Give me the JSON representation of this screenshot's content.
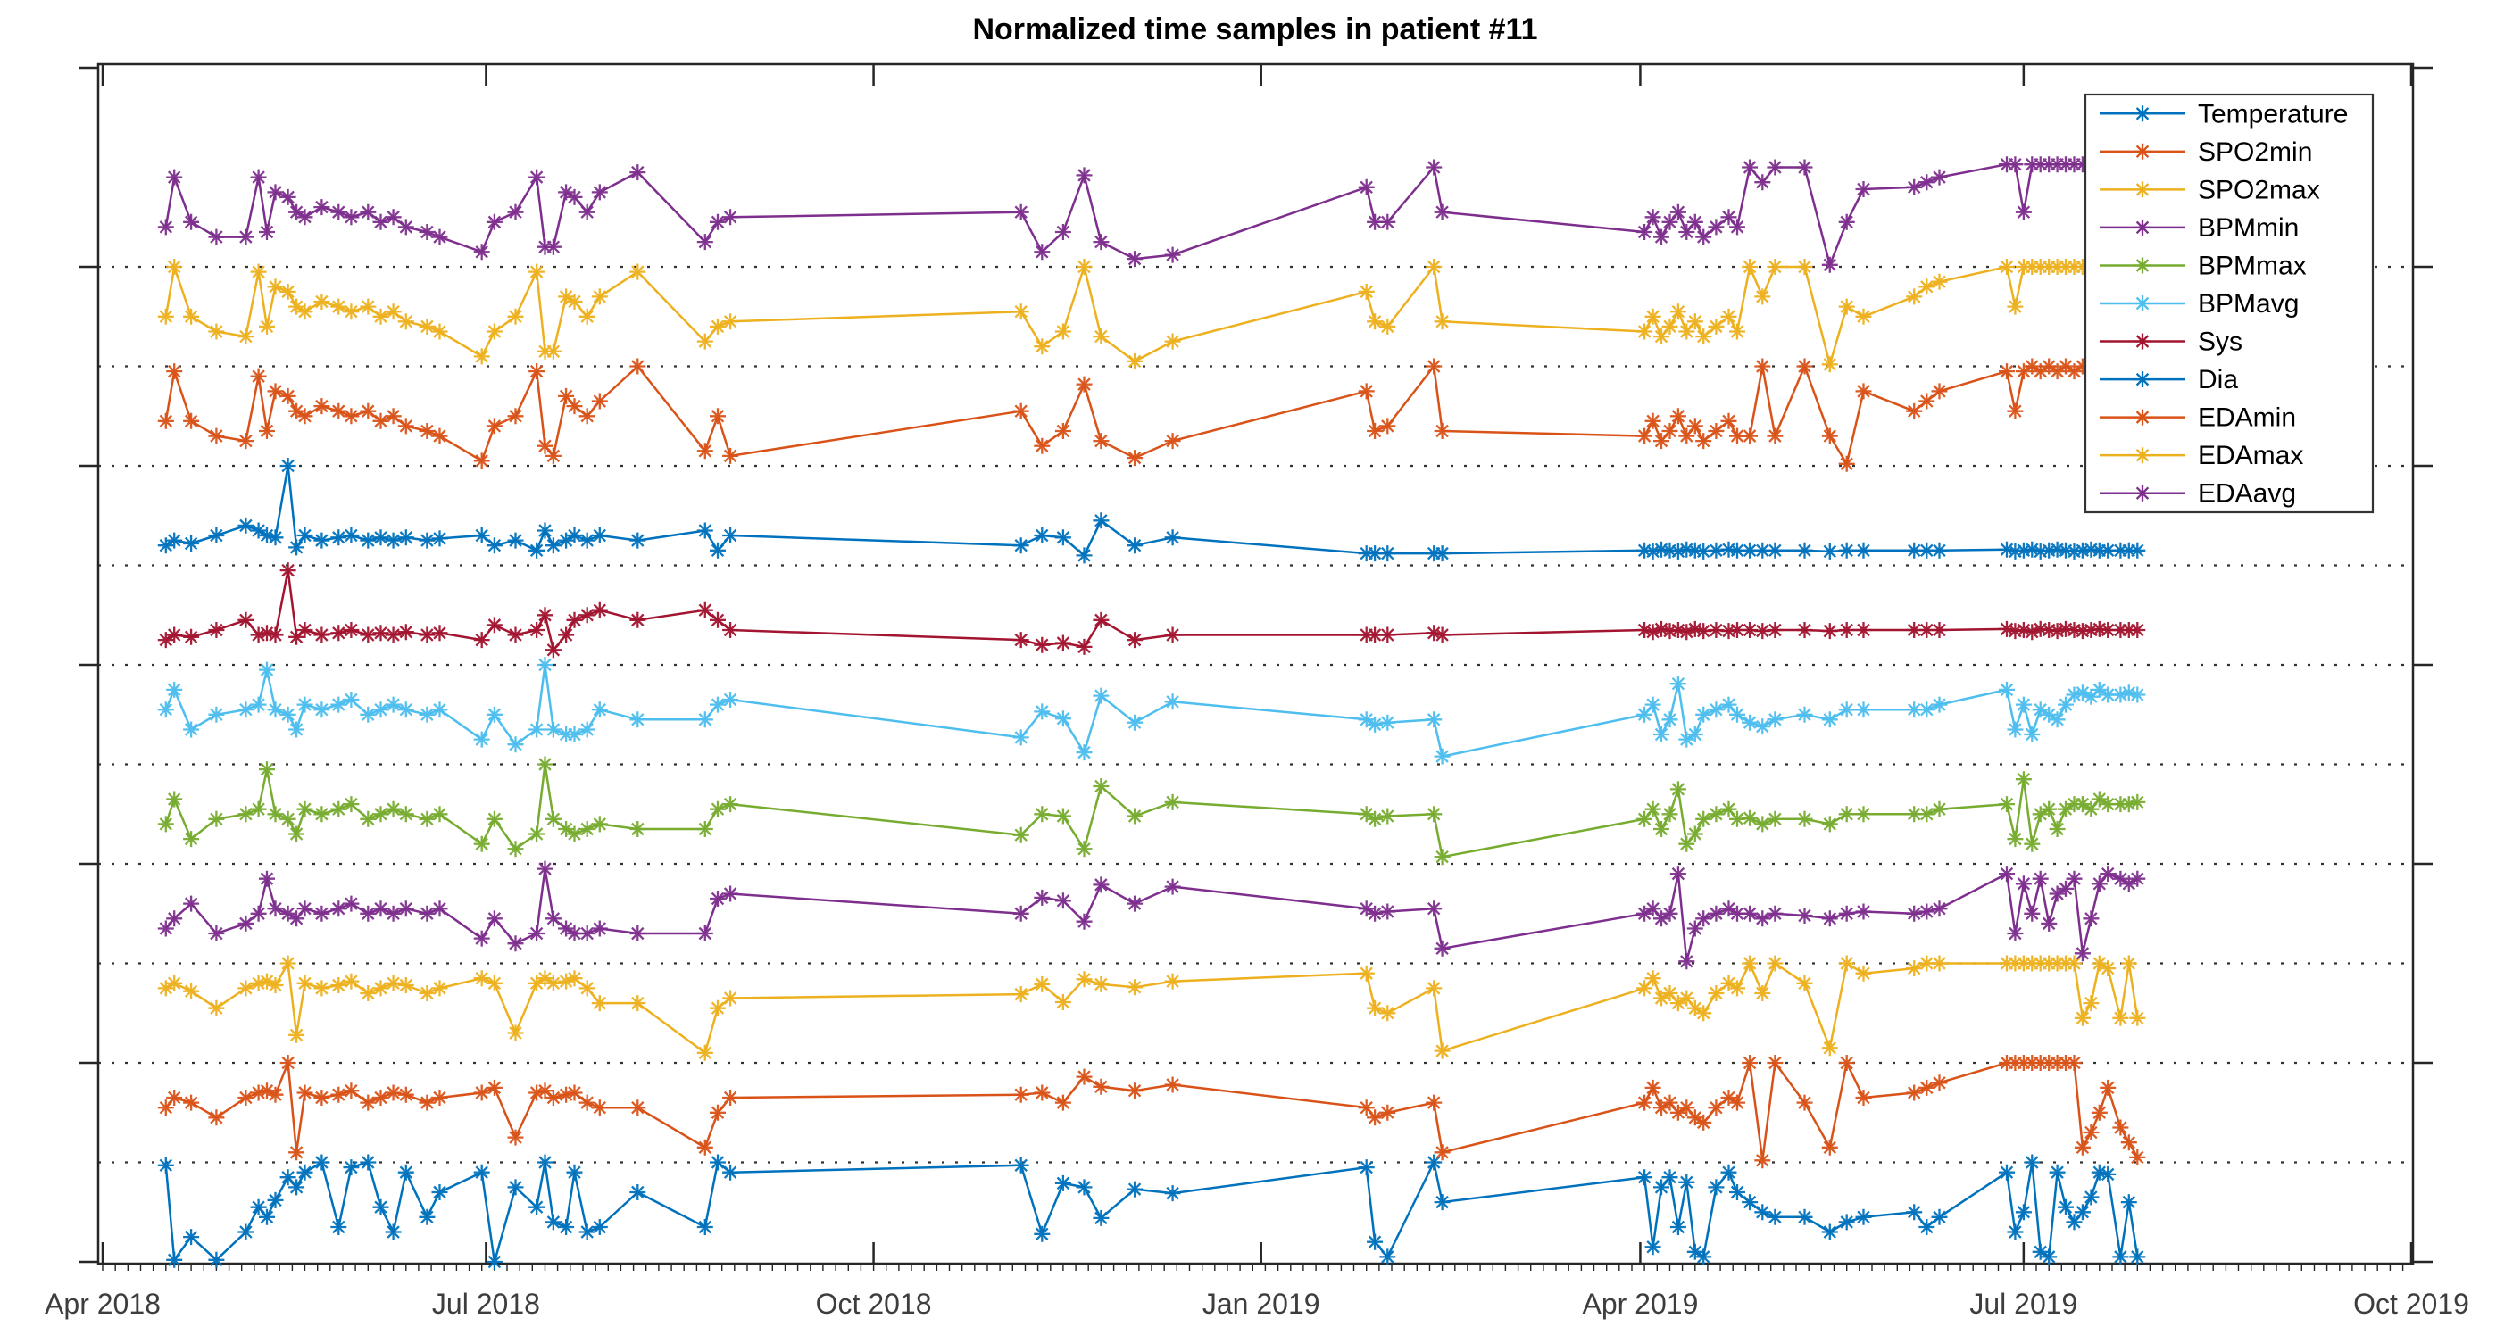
{
  "title": "Normalized time samples in patient #11",
  "chart_data": {
    "type": "line",
    "title": "Normalized time samples in patient #11",
    "xlabel": "",
    "ylabel": "",
    "x_unit": "days since 2018-04-01",
    "x_axis": {
      "tick_labels": [
        "Apr 2018",
        "Jul 2018",
        "Oct 2018",
        "Jan 2019",
        "Apr 2019",
        "Jul 2019",
        "Oct 2019"
      ],
      "tick_days": [
        0,
        91,
        183,
        275,
        365,
        456,
        548
      ]
    },
    "y_axis": {
      "tick_values": [
        0,
        2,
        4,
        6,
        8,
        10,
        12
      ],
      "tick_labels_shown": false,
      "ylim": [
        -0.05,
        12.0
      ]
    },
    "grid": "dotted horizontal baseline per offset series",
    "legend_position": "top-right inside axes",
    "marker": "asterisk",
    "note_layout": "each series normalized to [0,1] and vertically offset by its index; dotted line marks each series baseline",
    "axis_color": "#262626",
    "x": [
      15,
      17,
      21,
      27,
      34,
      37,
      39,
      41,
      44,
      46,
      48,
      52,
      56,
      59,
      63,
      66,
      69,
      72,
      77,
      80,
      90,
      93,
      98,
      103,
      105,
      107,
      110,
      112,
      115,
      118,
      127,
      143,
      146,
      149,
      218,
      223,
      228,
      233,
      237,
      245,
      254,
      300,
      302,
      305,
      316,
      318,
      366,
      368,
      370,
      372,
      374,
      376,
      378,
      380,
      383,
      386,
      388,
      391,
      394,
      397,
      404,
      410,
      414,
      418,
      430,
      433,
      436,
      452,
      454,
      456,
      458,
      460,
      462,
      464,
      466,
      468,
      470,
      472,
      474,
      476,
      479,
      481,
      483
    ],
    "series": [
      {
        "name": "Temperature",
        "color": "#0072BD",
        "offset": 0,
        "values": [
          0.97,
          0.02,
          0.25,
          0.02,
          0.3,
          0.55,
          0.45,
          0.62,
          0.85,
          0.75,
          0.9,
          1.0,
          0.35,
          0.95,
          1.0,
          0.55,
          0.3,
          0.9,
          0.45,
          0.7,
          0.9,
          0.0,
          0.75,
          0.55,
          1.0,
          0.4,
          0.35,
          0.9,
          0.3,
          0.35,
          0.7,
          0.35,
          1.0,
          0.9,
          0.97,
          0.28,
          0.79,
          0.75,
          0.44,
          0.73,
          0.69,
          0.95,
          0.2,
          0.05,
          1.0,
          0.6,
          0.85,
          0.15,
          0.75,
          0.85,
          0.35,
          0.8,
          0.1,
          0.05,
          0.75,
          0.9,
          0.7,
          0.6,
          0.5,
          0.45,
          0.45,
          0.3,
          0.4,
          0.45,
          0.5,
          0.35,
          0.45,
          0.9,
          0.3,
          0.5,
          1.0,
          0.1,
          0.05,
          0.9,
          0.55,
          0.4,
          0.5,
          0.65,
          0.9,
          0.88,
          0.05,
          0.6,
          0.05
        ]
      },
      {
        "name": "SPO2min",
        "color": "#D95319",
        "offset": 1,
        "values": [
          0.55,
          0.65,
          0.6,
          0.45,
          0.65,
          0.7,
          0.72,
          0.68,
          1.0,
          0.1,
          0.7,
          0.65,
          0.68,
          0.72,
          0.6,
          0.65,
          0.7,
          0.68,
          0.6,
          0.65,
          0.7,
          0.75,
          0.25,
          0.7,
          0.72,
          0.65,
          0.68,
          0.7,
          0.6,
          0.55,
          0.55,
          0.15,
          0.5,
          0.65,
          0.68,
          0.7,
          0.6,
          0.86,
          0.76,
          0.72,
          0.78,
          0.55,
          0.45,
          0.5,
          0.6,
          0.1,
          0.6,
          0.75,
          0.55,
          0.6,
          0.5,
          0.55,
          0.45,
          0.4,
          0.55,
          0.65,
          0.6,
          1.0,
          0.02,
          1.0,
          0.6,
          0.15,
          1.0,
          0.65,
          0.7,
          0.75,
          0.8,
          1.0,
          1.0,
          1.0,
          1.0,
          1.0,
          1.0,
          1.0,
          1.0,
          1.0,
          0.15,
          0.3,
          0.5,
          0.75,
          0.35,
          0.2,
          0.05
        ]
      },
      {
        "name": "SPO2max",
        "color": "#EDB120",
        "offset": 2,
        "values": [
          0.75,
          0.8,
          0.72,
          0.55,
          0.75,
          0.8,
          0.82,
          0.78,
          1.0,
          0.28,
          0.8,
          0.75,
          0.78,
          0.82,
          0.7,
          0.75,
          0.8,
          0.78,
          0.7,
          0.75,
          0.85,
          0.8,
          0.3,
          0.8,
          0.85,
          0.8,
          0.82,
          0.85,
          0.75,
          0.6,
          0.6,
          0.1,
          0.55,
          0.65,
          0.69,
          0.79,
          0.61,
          0.84,
          0.79,
          0.76,
          0.82,
          0.9,
          0.55,
          0.5,
          0.75,
          0.12,
          0.75,
          0.85,
          0.65,
          0.7,
          0.6,
          0.65,
          0.55,
          0.5,
          0.7,
          0.8,
          0.75,
          1.0,
          0.7,
          1.0,
          0.8,
          0.15,
          1.0,
          0.9,
          0.95,
          1.0,
          1.0,
          1.0,
          1.0,
          1.0,
          1.0,
          1.0,
          1.0,
          1.0,
          1.0,
          1.0,
          0.45,
          0.6,
          1.0,
          0.95,
          0.45,
          1.0,
          0.45
        ]
      },
      {
        "name": "BPMmin",
        "color": "#7E2F8E",
        "offset": 3,
        "values": [
          0.35,
          0.45,
          0.6,
          0.3,
          0.4,
          0.5,
          0.85,
          0.55,
          0.5,
          0.45,
          0.55,
          0.5,
          0.55,
          0.6,
          0.5,
          0.55,
          0.5,
          0.55,
          0.5,
          0.55,
          0.25,
          0.45,
          0.2,
          0.3,
          0.95,
          0.45,
          0.35,
          0.3,
          0.3,
          0.35,
          0.3,
          0.3,
          0.65,
          0.7,
          0.5,
          0.66,
          0.63,
          0.42,
          0.79,
          0.6,
          0.77,
          0.55,
          0.5,
          0.52,
          0.55,
          0.15,
          0.5,
          0.55,
          0.45,
          0.5,
          0.9,
          0.02,
          0.35,
          0.45,
          0.5,
          0.55,
          0.5,
          0.5,
          0.45,
          0.5,
          0.48,
          0.45,
          0.5,
          0.52,
          0.5,
          0.52,
          0.55,
          0.9,
          0.3,
          0.8,
          0.5,
          0.85,
          0.4,
          0.7,
          0.75,
          0.85,
          0.1,
          0.45,
          0.8,
          0.9,
          0.85,
          0.8,
          0.85
        ]
      },
      {
        "name": "BPMmax",
        "color": "#77AC30",
        "offset": 4,
        "values": [
          0.4,
          0.65,
          0.25,
          0.45,
          0.5,
          0.55,
          0.95,
          0.5,
          0.45,
          0.3,
          0.55,
          0.5,
          0.55,
          0.6,
          0.45,
          0.5,
          0.55,
          0.5,
          0.45,
          0.5,
          0.2,
          0.45,
          0.15,
          0.3,
          1.0,
          0.45,
          0.35,
          0.3,
          0.35,
          0.4,
          0.35,
          0.35,
          0.55,
          0.6,
          0.29,
          0.5,
          0.48,
          0.15,
          0.78,
          0.48,
          0.62,
          0.5,
          0.45,
          0.48,
          0.5,
          0.07,
          0.45,
          0.55,
          0.35,
          0.5,
          0.75,
          0.2,
          0.3,
          0.45,
          0.5,
          0.55,
          0.45,
          0.46,
          0.4,
          0.45,
          0.45,
          0.4,
          0.5,
          0.5,
          0.5,
          0.5,
          0.55,
          0.6,
          0.25,
          0.85,
          0.2,
          0.5,
          0.55,
          0.35,
          0.55,
          0.6,
          0.6,
          0.55,
          0.65,
          0.6,
          0.6,
          0.6,
          0.62
        ]
      },
      {
        "name": "BPMavg",
        "color": "#4DBEEE",
        "offset": 5,
        "values": [
          0.55,
          0.75,
          0.35,
          0.5,
          0.55,
          0.6,
          0.95,
          0.55,
          0.5,
          0.35,
          0.6,
          0.55,
          0.6,
          0.65,
          0.5,
          0.55,
          0.6,
          0.55,
          0.5,
          0.55,
          0.25,
          0.5,
          0.2,
          0.35,
          1.0,
          0.35,
          0.3,
          0.3,
          0.35,
          0.55,
          0.45,
          0.45,
          0.6,
          0.65,
          0.27,
          0.53,
          0.46,
          0.12,
          0.69,
          0.42,
          0.63,
          0.45,
          0.4,
          0.42,
          0.45,
          0.08,
          0.5,
          0.6,
          0.3,
          0.45,
          0.81,
          0.25,
          0.3,
          0.5,
          0.55,
          0.6,
          0.5,
          0.42,
          0.38,
          0.45,
          0.5,
          0.45,
          0.55,
          0.55,
          0.55,
          0.55,
          0.6,
          0.75,
          0.35,
          0.6,
          0.3,
          0.55,
          0.5,
          0.45,
          0.6,
          0.7,
          0.72,
          0.68,
          0.75,
          0.7,
          0.7,
          0.72,
          0.7
        ]
      },
      {
        "name": "Sys",
        "color": "#A2142F",
        "offset": 6,
        "values": [
          0.25,
          0.3,
          0.28,
          0.35,
          0.45,
          0.3,
          0.32,
          0.3,
          0.95,
          0.28,
          0.35,
          0.3,
          0.32,
          0.35,
          0.3,
          0.32,
          0.3,
          0.33,
          0.3,
          0.32,
          0.25,
          0.4,
          0.3,
          0.35,
          0.5,
          0.15,
          0.3,
          0.45,
          0.5,
          0.55,
          0.45,
          0.55,
          0.45,
          0.35,
          0.25,
          0.2,
          0.22,
          0.18,
          0.45,
          0.25,
          0.3,
          0.3,
          0.3,
          0.3,
          0.32,
          0.3,
          0.35,
          0.33,
          0.36,
          0.34,
          0.35,
          0.33,
          0.36,
          0.34,
          0.35,
          0.34,
          0.35,
          0.35,
          0.34,
          0.35,
          0.35,
          0.34,
          0.35,
          0.35,
          0.35,
          0.35,
          0.35,
          0.36,
          0.34,
          0.35,
          0.33,
          0.36,
          0.35,
          0.34,
          0.36,
          0.35,
          0.34,
          0.35,
          0.36,
          0.35,
          0.35,
          0.35,
          0.35
        ]
      },
      {
        "name": "Dia",
        "color": "#0072BD",
        "offset": 7,
        "values": [
          0.2,
          0.25,
          0.22,
          0.3,
          0.4,
          0.35,
          0.3,
          0.28,
          1.0,
          0.18,
          0.3,
          0.25,
          0.28,
          0.3,
          0.25,
          0.28,
          0.25,
          0.28,
          0.25,
          0.27,
          0.3,
          0.2,
          0.25,
          0.15,
          0.35,
          0.2,
          0.25,
          0.3,
          0.25,
          0.3,
          0.25,
          0.35,
          0.15,
          0.3,
          0.2,
          0.3,
          0.28,
          0.1,
          0.45,
          0.2,
          0.28,
          0.12,
          0.12,
          0.12,
          0.12,
          0.12,
          0.15,
          0.14,
          0.16,
          0.15,
          0.14,
          0.16,
          0.15,
          0.14,
          0.15,
          0.16,
          0.15,
          0.15,
          0.15,
          0.15,
          0.15,
          0.14,
          0.15,
          0.15,
          0.15,
          0.15,
          0.15,
          0.16,
          0.14,
          0.15,
          0.16,
          0.14,
          0.15,
          0.16,
          0.15,
          0.14,
          0.15,
          0.16,
          0.15,
          0.15,
          0.15,
          0.15,
          0.15
        ]
      },
      {
        "name": "EDAmin",
        "color": "#D95319",
        "offset": 8,
        "values": [
          0.45,
          0.95,
          0.45,
          0.3,
          0.25,
          0.9,
          0.35,
          0.75,
          0.7,
          0.55,
          0.5,
          0.6,
          0.55,
          0.5,
          0.55,
          0.45,
          0.5,
          0.4,
          0.35,
          0.3,
          0.05,
          0.4,
          0.5,
          0.95,
          0.2,
          0.1,
          0.7,
          0.6,
          0.5,
          0.65,
          1.0,
          0.15,
          0.5,
          0.1,
          0.55,
          0.2,
          0.35,
          0.82,
          0.25,
          0.08,
          0.25,
          0.75,
          0.35,
          0.4,
          1.0,
          0.35,
          0.3,
          0.45,
          0.25,
          0.35,
          0.5,
          0.3,
          0.4,
          0.25,
          0.35,
          0.45,
          0.3,
          0.3,
          1.0,
          0.3,
          1.0,
          0.3,
          0.02,
          0.75,
          0.55,
          0.65,
          0.75,
          0.95,
          0.55,
          0.95,
          1.0,
          0.95,
          1.0,
          0.95,
          1.0,
          0.95,
          1.0,
          0.95,
          1.0,
          0.95,
          1.0,
          0.6,
          0.3
        ]
      },
      {
        "name": "EDAmax",
        "color": "#EDB120",
        "offset": 9,
        "values": [
          0.5,
          1.0,
          0.5,
          0.35,
          0.3,
          0.95,
          0.4,
          0.8,
          0.75,
          0.6,
          0.55,
          0.65,
          0.6,
          0.55,
          0.6,
          0.5,
          0.55,
          0.45,
          0.4,
          0.35,
          0.1,
          0.35,
          0.5,
          0.95,
          0.15,
          0.15,
          0.7,
          0.65,
          0.5,
          0.7,
          0.95,
          0.25,
          0.4,
          0.45,
          0.55,
          0.2,
          0.35,
          1.0,
          0.3,
          0.05,
          0.25,
          0.75,
          0.45,
          0.4,
          1.0,
          0.45,
          0.35,
          0.5,
          0.3,
          0.4,
          0.55,
          0.35,
          0.45,
          0.3,
          0.4,
          0.5,
          0.35,
          1.0,
          0.7,
          1.0,
          1.0,
          0.02,
          0.6,
          0.5,
          0.7,
          0.8,
          0.85,
          1.0,
          0.6,
          1.0,
          1.0,
          1.0,
          1.0,
          1.0,
          1.0,
          1.0,
          1.0,
          1.0,
          1.0,
          1.0,
          1.0,
          0.45,
          0.3
        ]
      },
      {
        "name": "EDAavg",
        "color": "#7E2F8E",
        "offset": 10,
        "values": [
          0.4,
          0.9,
          0.45,
          0.3,
          0.3,
          0.9,
          0.35,
          0.75,
          0.7,
          0.55,
          0.5,
          0.6,
          0.55,
          0.5,
          0.55,
          0.45,
          0.5,
          0.4,
          0.35,
          0.3,
          0.15,
          0.45,
          0.55,
          0.9,
          0.2,
          0.2,
          0.75,
          0.7,
          0.55,
          0.75,
          0.95,
          0.25,
          0.45,
          0.5,
          0.55,
          0.15,
          0.35,
          0.92,
          0.25,
          0.08,
          0.12,
          0.8,
          0.45,
          0.45,
          1.0,
          0.55,
          0.35,
          0.5,
          0.3,
          0.45,
          0.55,
          0.35,
          0.45,
          0.3,
          0.4,
          0.5,
          0.4,
          1.0,
          0.85,
          1.0,
          1.0,
          0.02,
          0.45,
          0.78,
          0.8,
          0.85,
          0.9,
          1.03,
          1.03,
          0.55,
          1.03,
          1.03,
          1.03,
          1.03,
          1.03,
          1.03,
          1.03,
          1.03,
          1.03,
          1.03,
          1.03,
          0.9,
          0.75
        ]
      }
    ]
  }
}
